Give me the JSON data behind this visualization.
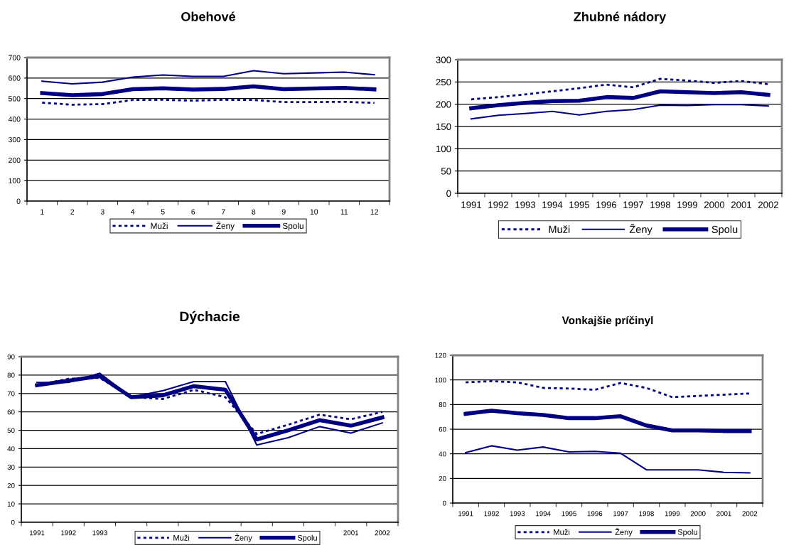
{
  "chart_data": [
    {
      "type": "line",
      "title": "Obehové",
      "categories": [
        "1",
        "2",
        "3",
        "4",
        "5",
        "6",
        "7",
        "8",
        "9",
        "10",
        "11",
        "12"
      ],
      "ylim": [
        0,
        700
      ],
      "yticks": [
        0,
        100,
        200,
        300,
        400,
        500,
        600,
        700
      ],
      "grid": "y",
      "legend": "bottom",
      "marker": "none",
      "series": [
        {
          "name": "Muži",
          "color": "#000080",
          "line_style": "dotted",
          "values": [
            480,
            470,
            473,
            493,
            494,
            490,
            494,
            493,
            483,
            483,
            484,
            479
          ]
        },
        {
          "name": "Ženy",
          "color": "#000080",
          "line_style": "solid",
          "values": [
            585,
            572,
            580,
            605,
            615,
            608,
            608,
            636,
            621,
            625,
            629,
            616
          ]
        },
        {
          "name": "Spolu",
          "color": "#000080",
          "line_style": "solid",
          "values": [
            527,
            516,
            522,
            546,
            550,
            544,
            547,
            560,
            546,
            549,
            552,
            545
          ]
        }
      ]
    },
    {
      "type": "line",
      "title": "Zhubné nádory",
      "categories": [
        "1991",
        "1992",
        "1993",
        "1994",
        "1995",
        "1996",
        "1997",
        "1998",
        "1999",
        "2000",
        "2001",
        "2002"
      ],
      "ylim": [
        0,
        300
      ],
      "yticks": [
        0,
        50,
        100,
        150,
        200,
        250,
        300
      ],
      "grid": "y",
      "legend": "bottom",
      "marker": "none",
      "series": [
        {
          "name": "Muži",
          "color": "#000080",
          "line_style": "dotted",
          "values": [
            211,
            216,
            222,
            229,
            236,
            244,
            238,
            257,
            253,
            248,
            252,
            245
          ]
        },
        {
          "name": "Ženy",
          "color": "#000080",
          "line_style": "solid",
          "values": [
            167,
            175,
            179,
            184,
            176,
            184,
            188,
            198,
            197,
            199,
            199,
            196
          ]
        },
        {
          "name": "Spolu",
          "color": "#000080",
          "line_style": "solid",
          "values": [
            191,
            198,
            203,
            207,
            208,
            216,
            214,
            229,
            227,
            225,
            227,
            221
          ]
        }
      ]
    },
    {
      "type": "line",
      "title": "Dýchacie",
      "categories": [
        "1991",
        "1992",
        "1993",
        null,
        null,
        null,
        null,
        null,
        null,
        null,
        "2001",
        "2002"
      ],
      "ylim": [
        0,
        90
      ],
      "yticks": [
        0,
        10,
        20,
        30,
        40,
        50,
        60,
        70,
        80,
        90
      ],
      "grid": "y",
      "legend": "bottom",
      "marker": "none",
      "series": [
        {
          "name": "Muži",
          "color": "#000080",
          "line_style": "dotted",
          "values": [
            74.5,
            78,
            78.5,
            68,
            67,
            72,
            68,
            48,
            53,
            58.5,
            56,
            60
          ]
        },
        {
          "name": "Ženy",
          "color": "#000080",
          "line_style": "solid",
          "values": [
            76,
            76,
            81,
            68,
            71.5,
            76.5,
            76.5,
            42,
            46,
            52,
            48.5,
            54
          ]
        },
        {
          "name": "Spolu",
          "color": "#000080",
          "line_style": "solid",
          "values": [
            74.5,
            77,
            79.5,
            68,
            69,
            74,
            72,
            45,
            50,
            55.5,
            52.5,
            57
          ]
        }
      ]
    },
    {
      "type": "line",
      "title": "Vonkajšie príčinyl",
      "categories": [
        "1991",
        "1992",
        "1993",
        "1994",
        "1995",
        "1996",
        "1997",
        "1998",
        "1999",
        "2000",
        "2001",
        "2002"
      ],
      "ylim": [
        0,
        120
      ],
      "yticks": [
        0,
        20,
        40,
        60,
        80,
        100,
        120
      ],
      "grid": "y",
      "legend": "bottom",
      "marker": "none",
      "series": [
        {
          "name": "Muži",
          "color": "#000080",
          "line_style": "dotted",
          "values": [
            98,
            99,
            98,
            93.5,
            93,
            92,
            97.5,
            93.5,
            86,
            87,
            88,
            89
          ]
        },
        {
          "name": "Ženy",
          "color": "#000080",
          "line_style": "solid",
          "values": [
            41,
            46.5,
            43,
            45.5,
            41.5,
            42,
            40.5,
            27,
            27,
            27,
            25,
            24.5
          ]
        },
        {
          "name": "Spolu",
          "color": "#000080",
          "line_style": "solid",
          "values": [
            72.5,
            75,
            73,
            71.5,
            69,
            69,
            70.5,
            63,
            59,
            59,
            58.5,
            58.5
          ]
        }
      ]
    }
  ]
}
